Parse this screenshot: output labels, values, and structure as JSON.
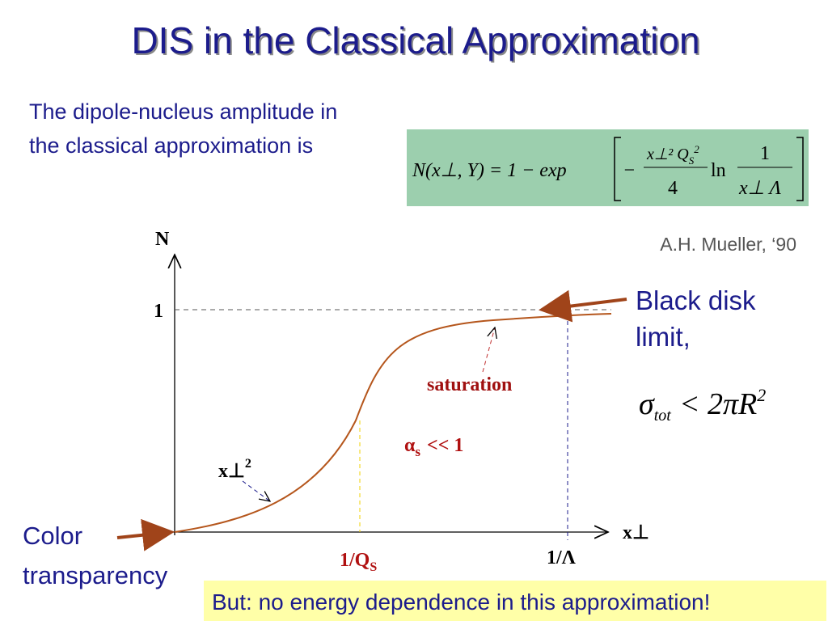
{
  "title": "DIS in the Classical Approximation",
  "intro": [
    "The dipole-nucleus amplitude in",
    "the classical approximation is"
  ],
  "formula": {
    "lhs": "N(x⊥, Y) = 1 − exp",
    "minus": "−",
    "num": "x⊥² Q",
    "num_sub": "S",
    "num_sup": "2",
    "den": "4",
    "ln": "ln",
    "num2": "1",
    "den2": "x⊥ Λ"
  },
  "citation": "A.H. Mueller, ‘90",
  "graph": {
    "y_axis": "N",
    "x_axis": "x⊥",
    "y_tick": "1",
    "x_tick1": "1/Q",
    "x_tick1_sub": "S",
    "x_tick2": "1/Λ",
    "saturation": "saturation",
    "alpha": "α",
    "alpha_sub": "s",
    "alpha_rest": "<< 1",
    "small_x": "x⊥",
    "small_x_sup": "2"
  },
  "black_disk": [
    "Black disk",
    "limit,"
  ],
  "cross_section": {
    "sigma": "σ",
    "sub": "tot",
    "rest": "< 2πR",
    "sup": "2"
  },
  "color_transparency": [
    "Color",
    "transparency"
  ],
  "footer": "But: no energy dependence in this approximation!"
}
